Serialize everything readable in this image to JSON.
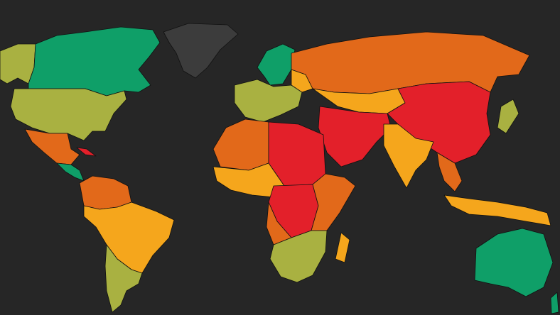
{
  "map": {
    "background": "#262626",
    "palette": {
      "red": "#e3202a",
      "orange": "#e2691a",
      "amber": "#f5a61c",
      "olive": "#a9b141",
      "green": "#0f9f68",
      "none": "#3c3c3c"
    }
  }
}
